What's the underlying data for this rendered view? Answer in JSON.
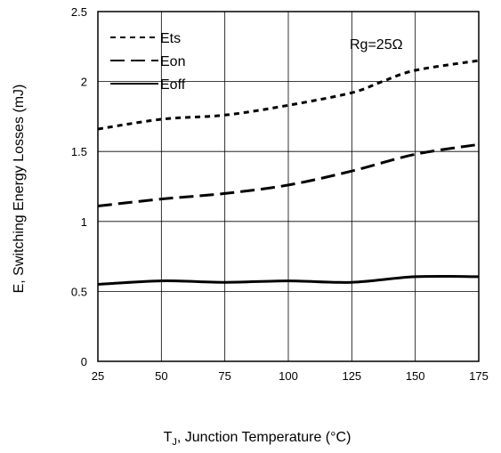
{
  "chart_data": {
    "type": "line",
    "title": "",
    "xlabel_main": "T",
    "xlabel_sub": "J",
    "xlabel_rest": ", Junction Temperature (°C)",
    "ylabel": "E, Switching Energy Losses (mJ)",
    "xlim": [
      25,
      175
    ],
    "ylim": [
      0,
      2.5
    ],
    "xticks": [
      25,
      50,
      75,
      100,
      125,
      150,
      175
    ],
    "yticks": [
      0,
      0.5,
      1,
      1.5,
      2,
      2.5
    ],
    "xtick_labels": [
      "25",
      "50",
      "75",
      "100",
      "125",
      "150",
      "175"
    ],
    "ytick_labels": [
      "0",
      "0.5",
      "1",
      "1.5",
      "2",
      "2.5"
    ],
    "grid": true,
    "legend_position": "top-left",
    "annotation": "Rg=25Ω",
    "series": [
      {
        "name": "Ets",
        "dash": "short-dash",
        "x": [
          25,
          50,
          75,
          100,
          125,
          137,
          150,
          175
        ],
        "y": [
          1.66,
          1.73,
          1.76,
          1.83,
          1.92,
          2.0,
          2.08,
          2.15
        ]
      },
      {
        "name": "Eon",
        "dash": "long-dash",
        "x": [
          25,
          50,
          75,
          100,
          125,
          150,
          175
        ],
        "y": [
          1.11,
          1.16,
          1.2,
          1.26,
          1.36,
          1.48,
          1.55
        ]
      },
      {
        "name": "Eoff",
        "dash": "solid",
        "x": [
          25,
          50,
          75,
          100,
          125,
          150,
          175
        ],
        "y": [
          0.55,
          0.575,
          0.565,
          0.575,
          0.565,
          0.605,
          0.605
        ]
      }
    ]
  }
}
